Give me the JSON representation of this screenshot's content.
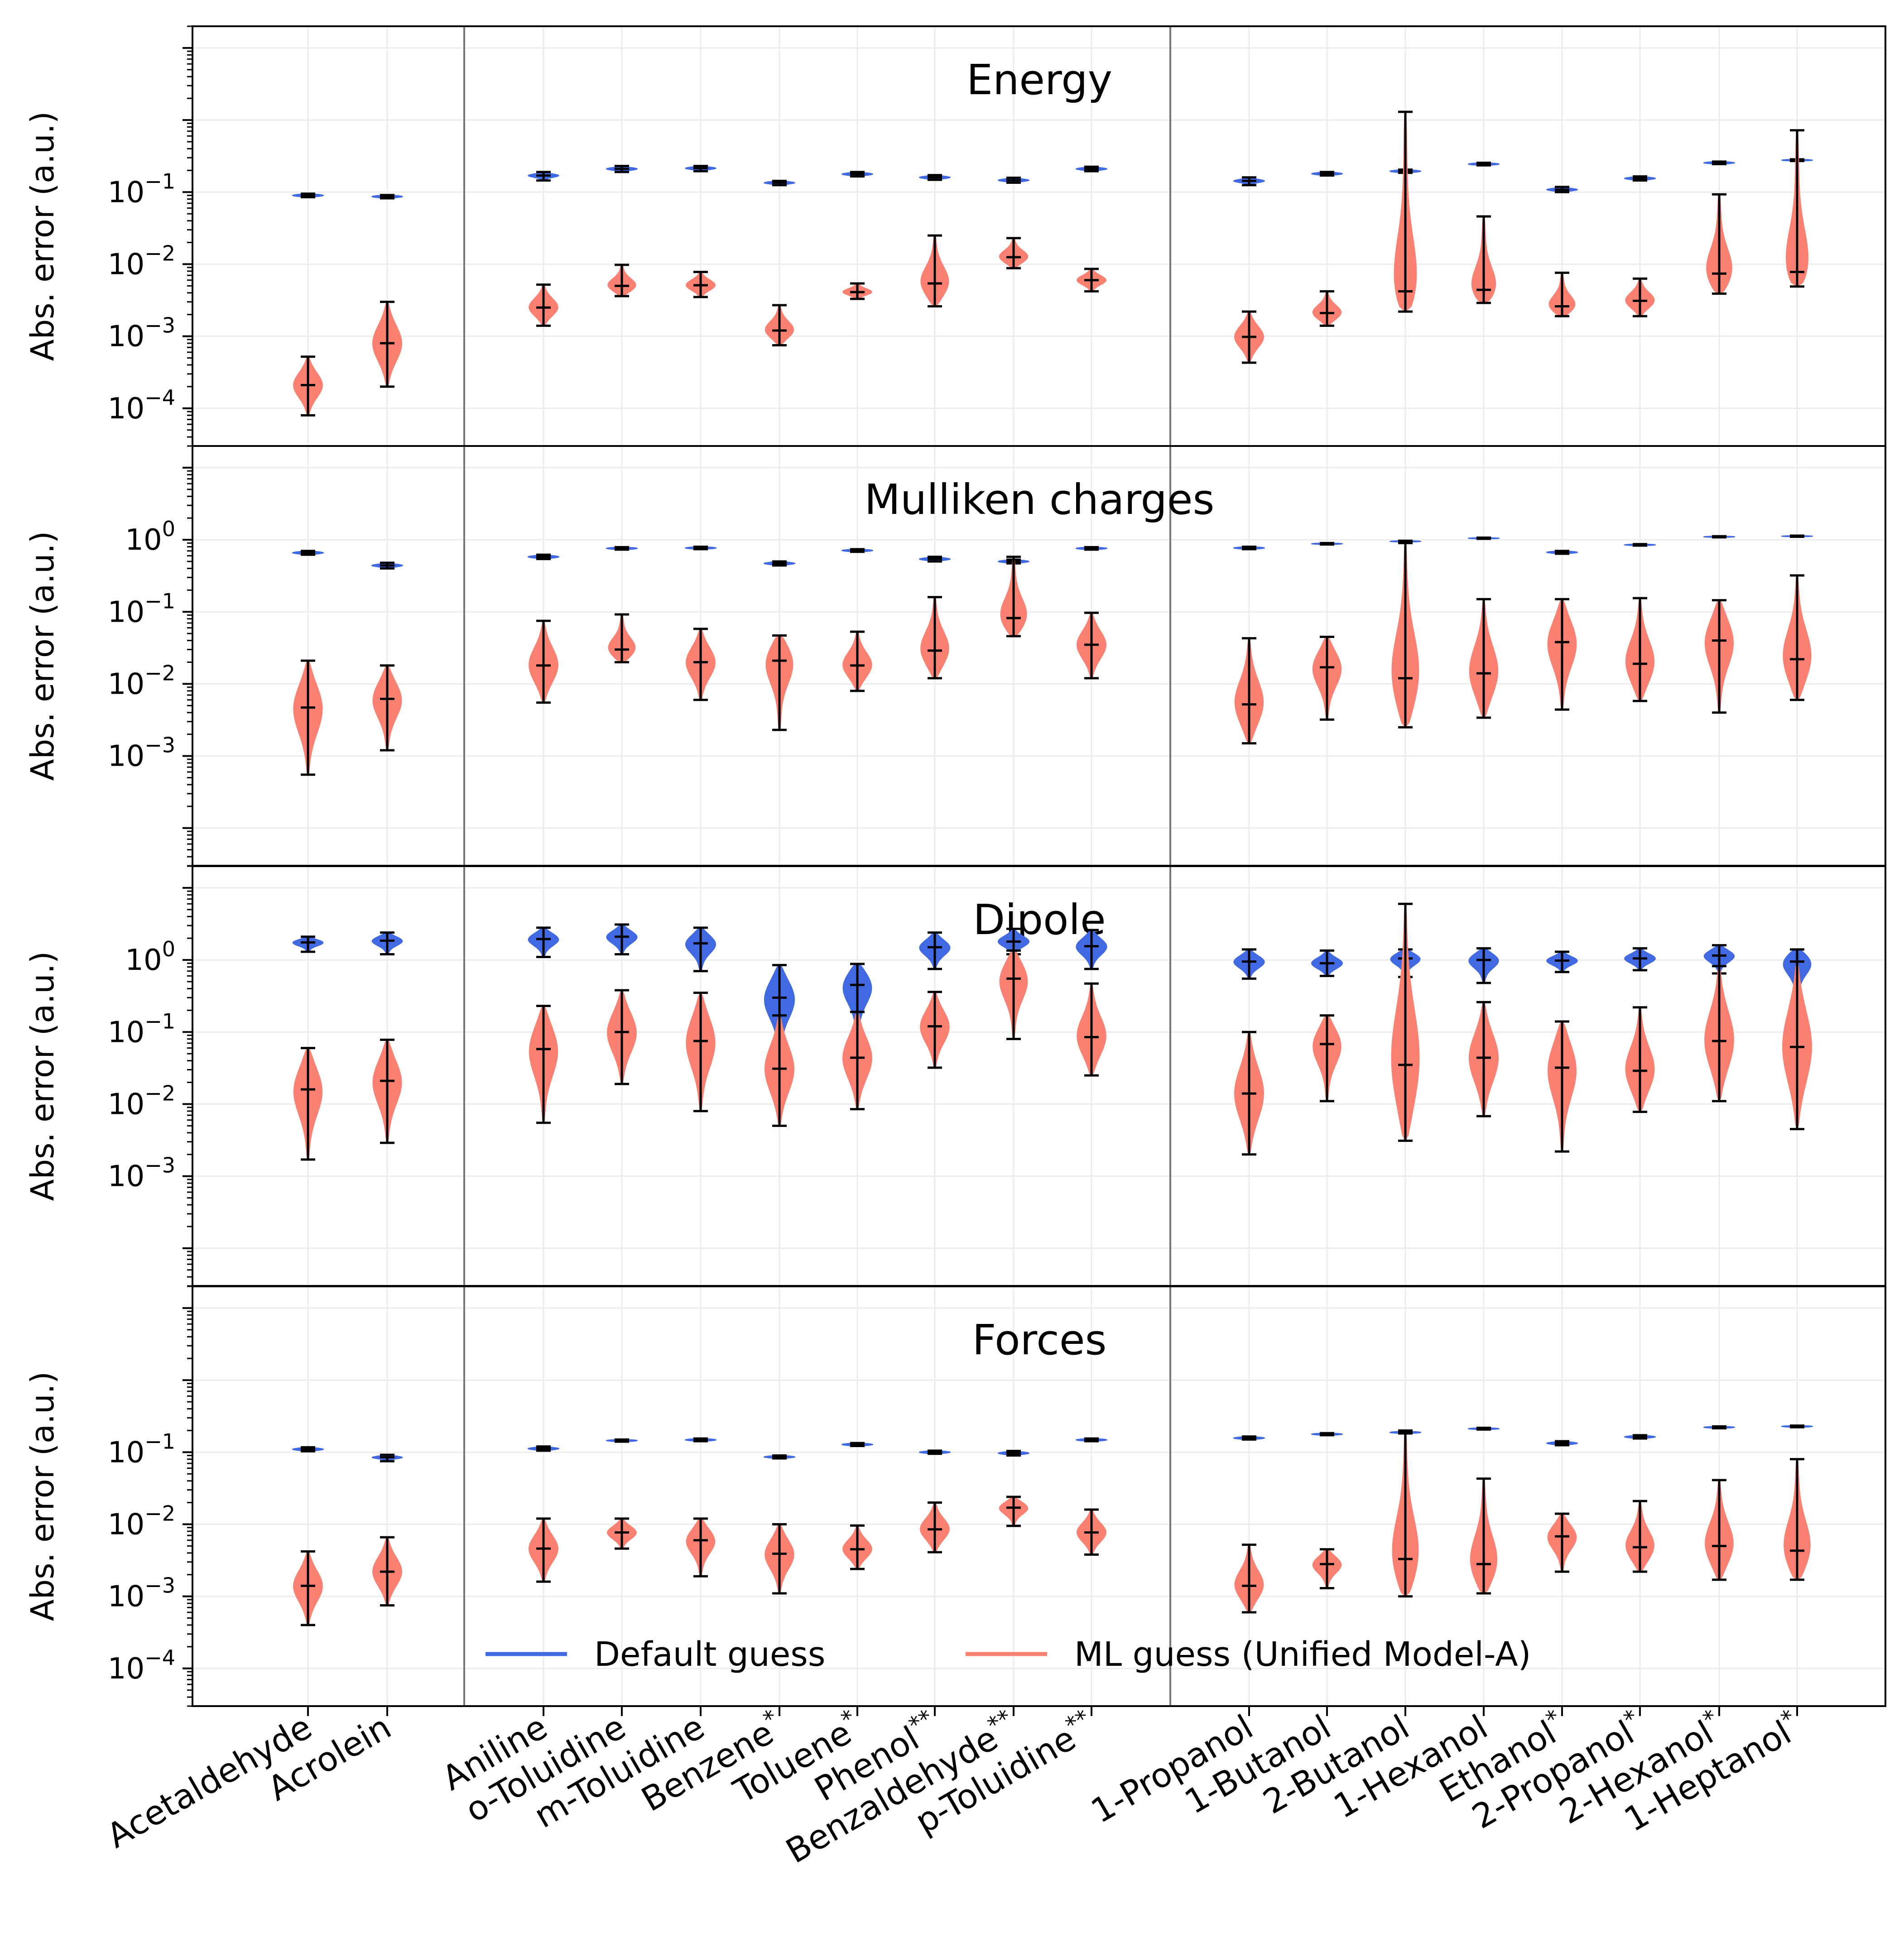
{
  "chart_data": {
    "type": "violin",
    "scale": "log",
    "ylim": [
      3e-05,
      20
    ],
    "categories": [
      "Acetaldehyde",
      "Acrolein",
      "Aniline",
      "o-Toluidine",
      "m-Toluidine",
      "Benzene",
      "Toluene",
      "Phenol",
      "Benzaldehyde",
      "p-Toluidine",
      "1-Propanol",
      "1-Butanol",
      "2-Butanol",
      "1-Hexanol",
      "Ethanol",
      "2-Propanol",
      "2-Hexanol",
      "1-Heptanol"
    ],
    "category_superscripts": [
      "",
      "",
      "",
      "",
      "",
      "*",
      "*",
      "**",
      "**",
      "**",
      "",
      "",
      "",
      "",
      "*",
      "*",
      "*",
      "*"
    ],
    "groups": [
      [
        0,
        1
      ],
      [
        2,
        9
      ],
      [
        10,
        17
      ]
    ],
    "series": [
      {
        "name": "Default guess",
        "color": "#4169e1"
      },
      {
        "name": "ML guess (Unified Model-A)",
        "color": "#fa8072"
      }
    ],
    "legend": {
      "position": "lower-center",
      "labels": [
        "Default guess",
        "ML guess (Unified Model-A)"
      ]
    },
    "panels": [
      {
        "title": "Energy",
        "ylabel": "Abs. error (a.u.)",
        "yticks": [
          {
            "v": 0.1,
            "b": "10",
            "e": "−1"
          },
          {
            "v": 0.01,
            "b": "10",
            "e": "−2"
          },
          {
            "v": 0.001,
            "b": "10",
            "e": "−3"
          },
          {
            "v": 0.0001,
            "b": "10",
            "e": "−4"
          }
        ],
        "default": [
          [
            0.085,
            0.09,
            0.095
          ],
          [
            0.082,
            0.087,
            0.091
          ],
          [
            0.145,
            0.17,
            0.19
          ],
          [
            0.19,
            0.21,
            0.23
          ],
          [
            0.195,
            0.215,
            0.23
          ],
          [
            0.125,
            0.135,
            0.143
          ],
          [
            0.165,
            0.178,
            0.19
          ],
          [
            0.148,
            0.16,
            0.172
          ],
          [
            0.135,
            0.146,
            0.158
          ],
          [
            0.195,
            0.21,
            0.225
          ],
          [
            0.125,
            0.143,
            0.16
          ],
          [
            0.17,
            0.18,
            0.19
          ],
          [
            0.185,
            0.195,
            0.205
          ],
          [
            0.235,
            0.245,
            0.255
          ],
          [
            0.1,
            0.108,
            0.118
          ],
          [
            0.145,
            0.155,
            0.165
          ],
          [
            0.245,
            0.255,
            0.265
          ],
          [
            0.27,
            0.278,
            0.285
          ]
        ],
        "ml": [
          [
            8e-05,
            0.00021,
            0.00052
          ],
          [
            0.0002,
            0.0008,
            0.003
          ],
          [
            0.0014,
            0.0025,
            0.0052
          ],
          [
            0.0036,
            0.005,
            0.0098
          ],
          [
            0.0035,
            0.0051,
            0.0078
          ],
          [
            0.00075,
            0.0012,
            0.0027
          ],
          [
            0.0033,
            0.0041,
            0.0054
          ],
          [
            0.0026,
            0.0054,
            0.025
          ],
          [
            0.0088,
            0.0125,
            0.023
          ],
          [
            0.0042,
            0.006,
            0.0086
          ],
          [
            0.00043,
            0.00098,
            0.0022
          ],
          [
            0.0014,
            0.0021,
            0.0042
          ],
          [
            0.0022,
            0.0042,
            1.3
          ],
          [
            0.0029,
            0.0044,
            0.046
          ],
          [
            0.0019,
            0.0026,
            0.0076
          ],
          [
            0.0019,
            0.0031,
            0.0063
          ],
          [
            0.0039,
            0.0074,
            0.093
          ],
          [
            0.0049,
            0.0078,
            0.72
          ]
        ]
      },
      {
        "title": "Mulliken charges",
        "ylabel": "Abs. error (a.u.)",
        "yticks": [
          {
            "v": 1,
            "b": "10",
            "e": "0"
          },
          {
            "v": 0.1,
            "b": "10",
            "e": "−1"
          },
          {
            "v": 0.01,
            "b": "10",
            "e": "−2"
          },
          {
            "v": 0.001,
            "b": "10",
            "e": "−3"
          }
        ],
        "default": [
          [
            0.62,
            0.66,
            0.7
          ],
          [
            0.4,
            0.44,
            0.48
          ],
          [
            0.54,
            0.58,
            0.62
          ],
          [
            0.73,
            0.76,
            0.79
          ],
          [
            0.74,
            0.77,
            0.8
          ],
          [
            0.44,
            0.47,
            0.5
          ],
          [
            0.68,
            0.71,
            0.74
          ],
          [
            0.5,
            0.54,
            0.58
          ],
          [
            0.47,
            0.5,
            0.53
          ],
          [
            0.73,
            0.76,
            0.79
          ],
          [
            0.74,
            0.77,
            0.8
          ],
          [
            0.86,
            0.88,
            0.9
          ],
          [
            0.93,
            0.95,
            0.97
          ],
          [
            1.03,
            1.05,
            1.07
          ],
          [
            0.64,
            0.67,
            0.7
          ],
          [
            0.83,
            0.85,
            0.87
          ],
          [
            1.08,
            1.1,
            1.12
          ],
          [
            1.1,
            1.12,
            1.14
          ]
        ],
        "ml": [
          [
            0.00055,
            0.0047,
            0.021
          ],
          [
            0.0012,
            0.0062,
            0.018
          ],
          [
            0.0055,
            0.018,
            0.075
          ],
          [
            0.02,
            0.03,
            0.092
          ],
          [
            0.006,
            0.02,
            0.058
          ],
          [
            0.0023,
            0.021,
            0.047
          ],
          [
            0.008,
            0.018,
            0.053
          ],
          [
            0.012,
            0.029,
            0.16
          ],
          [
            0.046,
            0.082,
            0.58
          ],
          [
            0.012,
            0.035,
            0.097
          ],
          [
            0.0015,
            0.0052,
            0.043
          ],
          [
            0.0032,
            0.017,
            0.045
          ],
          [
            0.0025,
            0.012,
            0.9
          ],
          [
            0.0034,
            0.014,
            0.15
          ],
          [
            0.0044,
            0.038,
            0.15
          ],
          [
            0.0058,
            0.019,
            0.155
          ],
          [
            0.004,
            0.04,
            0.145
          ],
          [
            0.006,
            0.022,
            0.32
          ]
        ]
      },
      {
        "title": "Dipole",
        "ylabel": "Abs. error (a.u.)",
        "yticks": [
          {
            "v": 1,
            "b": "10",
            "e": "0"
          },
          {
            "v": 0.1,
            "b": "10",
            "e": "−1"
          },
          {
            "v": 0.01,
            "b": "10",
            "e": "−2"
          },
          {
            "v": 0.001,
            "b": "10",
            "e": "−3"
          }
        ],
        "default": [
          [
            1.3,
            1.75,
            2.1
          ],
          [
            1.2,
            1.85,
            2.4
          ],
          [
            1.1,
            1.95,
            2.8
          ],
          [
            1.2,
            2.1,
            3.1
          ],
          [
            0.7,
            1.7,
            2.8
          ],
          [
            0.048,
            0.3,
            0.85
          ],
          [
            0.075,
            0.45,
            0.88
          ],
          [
            0.75,
            1.5,
            2.4
          ],
          [
            1.2,
            1.8,
            2.7
          ],
          [
            0.75,
            1.55,
            2.6
          ],
          [
            0.55,
            0.95,
            1.4
          ],
          [
            0.6,
            0.9,
            1.35
          ],
          [
            0.58,
            1.05,
            1.4
          ],
          [
            0.48,
            1.0,
            1.45
          ],
          [
            0.68,
            0.98,
            1.3
          ],
          [
            0.72,
            1.05,
            1.45
          ],
          [
            0.65,
            1.15,
            1.6
          ],
          [
            0.26,
            0.95,
            1.4
          ]
        ],
        "ml": [
          [
            0.0017,
            0.016,
            0.06
          ],
          [
            0.0029,
            0.021,
            0.078
          ],
          [
            0.0055,
            0.058,
            0.23
          ],
          [
            0.019,
            0.1,
            0.38
          ],
          [
            0.008,
            0.075,
            0.35
          ],
          [
            0.005,
            0.031,
            0.17
          ],
          [
            0.0085,
            0.044,
            0.19
          ],
          [
            0.032,
            0.12,
            0.36
          ],
          [
            0.08,
            0.55,
            1.35
          ],
          [
            0.025,
            0.085,
            0.47
          ],
          [
            0.002,
            0.014,
            0.1
          ],
          [
            0.011,
            0.068,
            0.17
          ],
          [
            0.0031,
            0.035,
            6.0
          ],
          [
            0.0068,
            0.044,
            0.26
          ],
          [
            0.0022,
            0.032,
            0.14
          ],
          [
            0.0078,
            0.029,
            0.22
          ],
          [
            0.011,
            0.075,
            0.82
          ],
          [
            0.0045,
            0.062,
            0.95
          ]
        ]
      },
      {
        "title": "Forces",
        "ylabel": "Abs. error (a.u.)",
        "yticks": [
          {
            "v": 0.1,
            "b": "10",
            "e": "−1"
          },
          {
            "v": 0.01,
            "b": "10",
            "e": "−2"
          },
          {
            "v": 0.001,
            "b": "10",
            "e": "−3"
          },
          {
            "v": 0.0001,
            "b": "10",
            "e": "−4"
          }
        ],
        "default": [
          [
            0.103,
            0.11,
            0.117
          ],
          [
            0.075,
            0.085,
            0.092
          ],
          [
            0.105,
            0.112,
            0.12
          ],
          [
            0.14,
            0.145,
            0.15
          ],
          [
            0.142,
            0.148,
            0.155
          ],
          [
            0.082,
            0.086,
            0.09
          ],
          [
            0.122,
            0.128,
            0.134
          ],
          [
            0.095,
            0.1,
            0.105
          ],
          [
            0.09,
            0.097,
            0.104
          ],
          [
            0.142,
            0.148,
            0.155
          ],
          [
            0.15,
            0.157,
            0.165
          ],
          [
            0.172,
            0.178,
            0.184
          ],
          [
            0.182,
            0.188,
            0.195
          ],
          [
            0.206,
            0.212,
            0.218
          ],
          [
            0.125,
            0.133,
            0.142
          ],
          [
            0.155,
            0.163,
            0.172
          ],
          [
            0.215,
            0.222,
            0.228
          ],
          [
            0.222,
            0.228,
            0.234
          ]
        ],
        "ml": [
          [
            0.0004,
            0.0014,
            0.0042
          ],
          [
            0.00075,
            0.0022,
            0.0066
          ],
          [
            0.0016,
            0.0046,
            0.012
          ],
          [
            0.0046,
            0.0077,
            0.012
          ],
          [
            0.0019,
            0.006,
            0.012
          ],
          [
            0.0011,
            0.0039,
            0.01
          ],
          [
            0.0024,
            0.0045,
            0.0096
          ],
          [
            0.0041,
            0.0085,
            0.02
          ],
          [
            0.0095,
            0.017,
            0.024
          ],
          [
            0.0038,
            0.0077,
            0.016
          ],
          [
            0.0006,
            0.0014,
            0.0052
          ],
          [
            0.0013,
            0.0028,
            0.0045
          ],
          [
            0.001,
            0.0033,
            0.2
          ],
          [
            0.0011,
            0.0028,
            0.043
          ],
          [
            0.0022,
            0.0068,
            0.014
          ],
          [
            0.0022,
            0.0048,
            0.021
          ],
          [
            0.0017,
            0.005,
            0.041
          ],
          [
            0.0017,
            0.0043,
            0.08
          ]
        ]
      }
    ]
  }
}
